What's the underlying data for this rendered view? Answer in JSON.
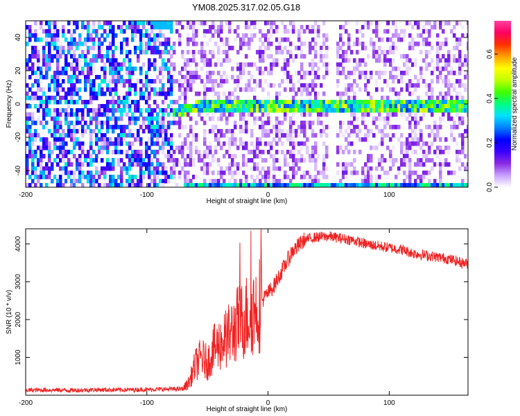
{
  "title": "YM08.2025.317.02.05.G18",
  "chart_data": [
    {
      "id": "spectrogram",
      "type": "heatmap",
      "xlabel": "Height of straight line (km)",
      "ylabel": "Frequency (Hz)",
      "xlim": [
        -200,
        165
      ],
      "ylim": [
        -50,
        50
      ],
      "xticks": [
        -200,
        -100,
        0,
        100
      ],
      "yticks": [
        -40,
        -20,
        0,
        20,
        40
      ],
      "colorbar": {
        "label": "Normalized spectral amplitude",
        "range": [
          0.0,
          0.75
        ],
        "ticks": [
          "0.0",
          "0.2",
          "0.4",
          "0.6"
        ],
        "colors": [
          "#ffffff",
          "#c8a0ff",
          "#8a2be2",
          "#3a00ff",
          "#0000ff",
          "#0080ff",
          "#00e0ff",
          "#00ff80",
          "#40ff00",
          "#c0ff00",
          "#ffff00",
          "#ffa000",
          "#ff3000",
          "#ff0060",
          "#ff40a0"
        ]
      },
      "features": [
        {
          "name": "dense noise region",
          "x_range": [
            -200,
            -80
          ],
          "level": 0.35
        },
        {
          "name": "sparse noise region",
          "x_range": [
            -80,
            165
          ],
          "level": 0.08
        },
        {
          "name": "signal band",
          "frequency": 0,
          "x_range": [
            -80,
            165
          ],
          "level": 0.4
        }
      ]
    },
    {
      "id": "snr",
      "type": "line",
      "xlabel": "Height of straight line (km)",
      "ylabel": "SNR (10 * v/v)",
      "xlim": [
        -200,
        165
      ],
      "ylim": [
        0,
        4400
      ],
      "xticks": [
        -200,
        -100,
        0,
        100
      ],
      "yticks": [
        1000,
        2000,
        3000,
        4000
      ],
      "color": "#ee2222",
      "series": [
        {
          "name": "SNR",
          "x": [
            -200,
            -180,
            -160,
            -140,
            -120,
            -100,
            -80,
            -70,
            -65,
            -60,
            -55,
            -50,
            -45,
            -40,
            -35,
            -30,
            -25,
            -20,
            -15,
            -10,
            -5,
            0,
            5,
            10,
            15,
            20,
            25,
            30,
            35,
            40,
            50,
            60,
            70,
            80,
            90,
            100,
            110,
            120,
            130,
            140,
            150,
            160,
            165
          ],
          "values": [
            130,
            140,
            130,
            145,
            140,
            150,
            160,
            170,
            350,
            800,
            1000,
            850,
            1200,
            1350,
            1500,
            1650,
            1900,
            2000,
            2200,
            2300,
            2500,
            2700,
            2900,
            3200,
            3500,
            3800,
            3950,
            4100,
            4150,
            4180,
            4200,
            4150,
            4100,
            4000,
            3950,
            3900,
            3850,
            3750,
            3700,
            3650,
            3600,
            3500,
            3480
          ]
        }
      ]
    }
  ]
}
